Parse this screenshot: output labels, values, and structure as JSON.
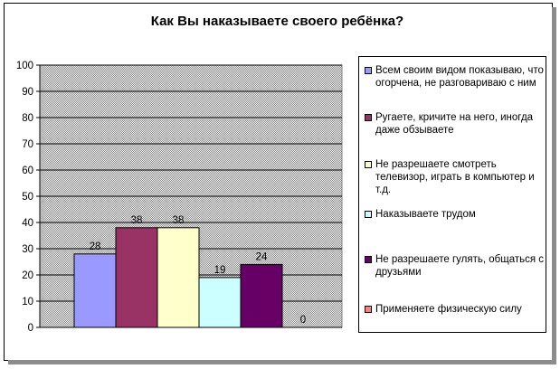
{
  "chart_data": {
    "type": "bar",
    "title": "Как Вы наказываете своего ребёнка?",
    "xlabel": "",
    "ylabel": "",
    "ylim": [
      0,
      100
    ],
    "yticks": [
      "0",
      "10",
      "20",
      "30",
      "40",
      "50",
      "60",
      "70",
      "80",
      "90",
      "100"
    ],
    "grid": true,
    "legend_position": "right",
    "series": [
      {
        "name": "Всем своим видом показываю, что огорчена, не разговариваю с ним",
        "value": 28,
        "label": "28",
        "color": "#9999ff"
      },
      {
        "name": "Ругаете, кричите на него, иногда даже обзываете",
        "value": 38,
        "label": "38",
        "color": "#993366"
      },
      {
        "name": "Не разрешаете смотреть телевизор, играть в компьютер и т.д.",
        "value": 38,
        "label": "38",
        "color": "#ffffcc"
      },
      {
        "name": "Наказываете трудом",
        "value": 19,
        "label": "19",
        "color": "#ccffff"
      },
      {
        "name": "Не разрешаете гулять, общаться с друзьями",
        "value": 24,
        "label": "24",
        "color": "#660066"
      },
      {
        "name": "Применяете физическую силу",
        "value": 0,
        "label": "0",
        "color": "#ff8080"
      }
    ]
  }
}
